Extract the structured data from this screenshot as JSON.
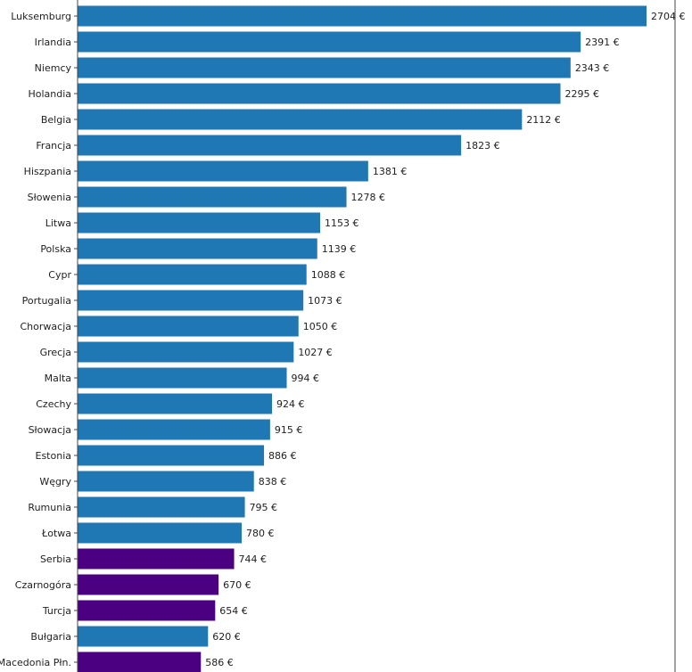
{
  "chart_data": {
    "type": "bar",
    "orientation": "horizontal",
    "title": "",
    "xlabel": "",
    "ylabel": "",
    "value_suffix": " €",
    "xlim": [
      0,
      2970
    ],
    "grid": false,
    "colors": {
      "eu": "#1f77b4",
      "non_eu": "#4b0082"
    },
    "categories": [
      "Luksemburg",
      "Irlandia",
      "Niemcy",
      "Holandia",
      "Belgia",
      "Francja",
      "Hiszpania",
      "Słowenia",
      "Litwa",
      "Polska",
      "Cypr",
      "Portugalia",
      "Chorwacja",
      "Grecja",
      "Malta",
      "Czechy",
      "Słowacja",
      "Estonia",
      "Węgry",
      "Rumunia",
      "Łotwa",
      "Serbia",
      "Czarnogóra",
      "Turcja",
      "Bułgaria",
      "Macedonia Płn."
    ],
    "values": [
      2704,
      2391,
      2343,
      2295,
      2112,
      1823,
      1381,
      1278,
      1153,
      1139,
      1088,
      1073,
      1050,
      1027,
      994,
      924,
      915,
      886,
      838,
      795,
      780,
      744,
      670,
      654,
      620,
      586
    ],
    "groups": [
      "eu",
      "eu",
      "eu",
      "eu",
      "eu",
      "eu",
      "eu",
      "eu",
      "eu",
      "eu",
      "eu",
      "eu",
      "eu",
      "eu",
      "eu",
      "eu",
      "eu",
      "eu",
      "eu",
      "eu",
      "eu",
      "non_eu",
      "non_eu",
      "non_eu",
      "eu",
      "non_eu"
    ],
    "value_labels": [
      "2704 €",
      "2391 €",
      "2343 €",
      "2295 €",
      "2112 €",
      "1823 €",
      "1381 €",
      "1278 €",
      "1153 €",
      "1139 €",
      "1088 €",
      "1073 €",
      "1050 €",
      "1027 €",
      "994 €",
      "924 €",
      "915 €",
      "886 €",
      "838 €",
      "795 €",
      "780 €",
      "744 €",
      "670 €",
      "654 €",
      "620 €",
      "586 €"
    ]
  }
}
